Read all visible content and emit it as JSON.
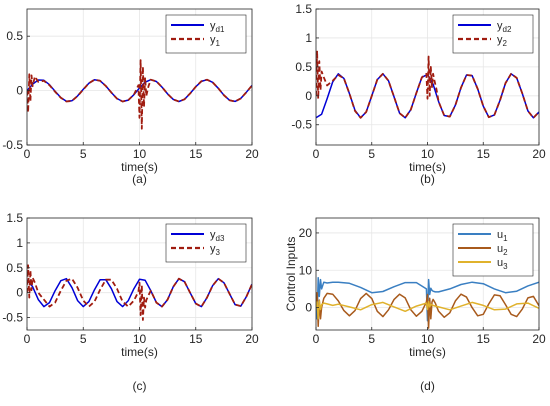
{
  "chart_data": [
    {
      "type": "line",
      "panel_label": "(a)",
      "xlabel": "time(s)",
      "ylabel": "",
      "xlim": [
        0,
        20
      ],
      "ylim": [
        -0.5,
        0.75
      ],
      "xticks": [
        "0",
        "5",
        "10",
        "15",
        "20"
      ],
      "yticks": [
        -0.5,
        0,
        0.5
      ],
      "ytick_labels": [
        "-0.5",
        "0",
        "0.5"
      ],
      "grid": true,
      "legend_position": "top-right",
      "series": [
        {
          "name": "y_d1",
          "label_main": "y",
          "label_sub": "d1",
          "color": "#0000d6",
          "style": "solid",
          "x": [
            0,
            0.5,
            1,
            1.5,
            2,
            2.5,
            3,
            3.5,
            4,
            4.5,
            5,
            5.5,
            6,
            6.5,
            7,
            7.5,
            8,
            8.5,
            9,
            9.5,
            10,
            10.5,
            11,
            11.5,
            12,
            12.5,
            13,
            13.5,
            14,
            14.5,
            15,
            15.5,
            16,
            16.5,
            17,
            17.5,
            18,
            18.5,
            19,
            19.5,
            20
          ],
          "values": [
            0,
            0.059,
            0.097,
            0.095,
            0.054,
            -0.006,
            -0.064,
            -0.098,
            -0.093,
            -0.049,
            0.012,
            0.068,
            0.099,
            0.09,
            0.043,
            -0.018,
            -0.073,
            -0.1,
            -0.087,
            -0.038,
            0.024,
            0.077,
            0.1,
            0.084,
            0.032,
            -0.03,
            -0.081,
            -0.1,
            -0.08,
            -0.027,
            0.036,
            0.085,
            0.1,
            0.076,
            0.021,
            -0.042,
            -0.088,
            -0.099,
            -0.072,
            -0.015,
            0.047
          ]
        },
        {
          "name": "y_1",
          "label_main": "y",
          "label_sub": "1",
          "color": "#a01c10",
          "style": "dashed",
          "x": [
            0,
            0.1,
            0.2,
            0.3,
            0.4,
            0.5,
            0.7,
            1,
            1.5,
            2,
            2.5,
            3,
            3.5,
            4,
            4.5,
            5,
            5.5,
            6,
            6.5,
            7,
            7.5,
            8,
            8.5,
            9,
            9.5,
            9.9,
            10,
            10.1,
            10.2,
            10.3,
            10.4,
            10.5,
            10.6,
            10.8,
            11,
            11.5,
            12,
            12.5,
            13,
            13.5,
            14,
            14.5,
            15,
            15.5,
            16,
            16.5,
            17,
            17.5,
            18,
            18.5,
            19,
            19.5,
            20
          ],
          "values": [
            0,
            -0.2,
            0.15,
            -0.1,
            0.14,
            0.04,
            0.13,
            0.08,
            0.09,
            0.05,
            -0.01,
            -0.065,
            -0.1,
            -0.095,
            -0.05,
            0.01,
            0.068,
            0.1,
            0.09,
            0.042,
            -0.018,
            -0.074,
            -0.1,
            -0.087,
            -0.038,
            0.05,
            -0.25,
            0.28,
            -0.35,
            0.22,
            -0.15,
            0.12,
            -0.05,
            0.04,
            0.1,
            0.085,
            0.032,
            -0.03,
            -0.082,
            -0.1,
            -0.08,
            -0.027,
            0.036,
            0.086,
            0.1,
            0.076,
            0.021,
            -0.042,
            -0.089,
            -0.1,
            -0.072,
            -0.015,
            0.047
          ]
        }
      ]
    },
    {
      "type": "line",
      "panel_label": "(b)",
      "xlabel": "time(s)",
      "ylabel": "",
      "xlim": [
        0,
        20
      ],
      "ylim": [
        -0.85,
        1.5
      ],
      "xticks": [
        "0",
        "5",
        "10",
        "15",
        "20"
      ],
      "yticks": [
        -0.5,
        0,
        0.5,
        1,
        1.5
      ],
      "ytick_labels": [
        "-0.5",
        "0",
        "0.5",
        "1",
        "1.5"
      ],
      "grid": true,
      "legend_position": "top-right",
      "series": [
        {
          "name": "y_d2",
          "label_main": "y",
          "label_sub": "d2",
          "color": "#0000d6",
          "style": "solid",
          "x": [
            0,
            0.5,
            1,
            1.5,
            2,
            2.5,
            3,
            3.5,
            4,
            4.5,
            5,
            5.5,
            6,
            6.5,
            7,
            7.5,
            8,
            8.5,
            9,
            9.5,
            10,
            10.5,
            11,
            11.5,
            12,
            12.5,
            13,
            13.5,
            14,
            14.5,
            15,
            15.5,
            16,
            16.5,
            17,
            17.5,
            18,
            18.5,
            19,
            19.5,
            20
          ],
          "values": [
            -0.38,
            -0.32,
            -0.05,
            0.24,
            0.38,
            0.3,
            0.04,
            -0.25,
            -0.38,
            -0.28,
            0.0,
            0.28,
            0.38,
            0.26,
            -0.02,
            -0.3,
            -0.38,
            -0.24,
            0.05,
            0.32,
            0.37,
            0.2,
            -0.1,
            -0.34,
            -0.36,
            -0.16,
            0.14,
            0.36,
            0.35,
            0.12,
            -0.18,
            -0.37,
            -0.33,
            -0.08,
            0.22,
            0.38,
            0.31,
            0.04,
            -0.26,
            -0.38,
            -0.28
          ]
        },
        {
          "name": "y_2",
          "label_main": "y",
          "label_sub": "2",
          "color": "#a01c10",
          "style": "dashed",
          "x": [
            0,
            0.1,
            0.2,
            0.3,
            0.4,
            0.5,
            0.7,
            1,
            1.5,
            2,
            2.5,
            3,
            3.5,
            4,
            4.5,
            5,
            5.5,
            6,
            6.5,
            7,
            7.5,
            8,
            8.5,
            9,
            9.5,
            9.9,
            10,
            10.1,
            10.2,
            10.3,
            10.4,
            10.5,
            10.6,
            10.8,
            11,
            11.5,
            12,
            12.5,
            13,
            13.5,
            14,
            14.5,
            15,
            15.5,
            16,
            16.5,
            17,
            17.5,
            18,
            18.5,
            19,
            19.5,
            20
          ],
          "values": [
            0,
            0.78,
            -0.05,
            0.6,
            0.1,
            0.42,
            0.32,
            0.18,
            0.26,
            0.36,
            0.3,
            0.04,
            -0.26,
            -0.38,
            -0.28,
            0.0,
            0.28,
            0.38,
            0.26,
            -0.02,
            -0.3,
            -0.38,
            -0.24,
            0.05,
            0.32,
            0.38,
            -0.05,
            0.68,
            0.0,
            0.5,
            0.15,
            0.38,
            0.28,
            0.12,
            -0.1,
            -0.34,
            -0.36,
            -0.16,
            0.14,
            0.36,
            0.35,
            0.12,
            -0.18,
            -0.37,
            -0.33,
            -0.08,
            0.22,
            0.38,
            0.31,
            0.04,
            -0.26,
            -0.38,
            -0.28
          ]
        }
      ]
    },
    {
      "type": "line",
      "panel_label": "(c)",
      "xlabel": "time(s)",
      "ylabel": "",
      "xlim": [
        0,
        20
      ],
      "ylim": [
        -0.75,
        1.5
      ],
      "xticks": [
        "0",
        "5",
        "10",
        "15",
        "20"
      ],
      "yticks": [
        -0.5,
        0,
        0.5,
        1,
        1.5
      ],
      "ytick_labels": [
        "-0.5",
        "0",
        "0.5",
        "1",
        "1.5"
      ],
      "grid": true,
      "legend_position": "top-right",
      "series": [
        {
          "name": "y_d3",
          "label_main": "y",
          "label_sub": "d3",
          "color": "#0000d6",
          "style": "solid",
          "x": [
            0,
            0.5,
            1,
            1.5,
            2,
            2.5,
            3,
            3.5,
            4,
            4.5,
            5,
            5.5,
            6,
            6.5,
            7,
            7.5,
            8,
            8.5,
            9,
            9.5,
            10,
            10.5,
            11,
            11.5,
            12,
            12.5,
            13,
            13.5,
            14,
            14.5,
            15,
            15.5,
            16,
            16.5,
            17,
            17.5,
            18,
            18.5,
            19,
            19.5,
            20
          ],
          "values": [
            0.26,
            0.12,
            -0.14,
            -0.28,
            -0.2,
            0.04,
            0.24,
            0.28,
            0.1,
            -0.16,
            -0.28,
            -0.18,
            0.06,
            0.26,
            0.26,
            0.08,
            -0.18,
            -0.28,
            -0.16,
            0.08,
            0.27,
            0.25,
            0.04,
            -0.2,
            -0.28,
            -0.14,
            0.12,
            0.28,
            0.22,
            0.0,
            -0.22,
            -0.28,
            -0.1,
            0.14,
            0.28,
            0.2,
            -0.02,
            -0.24,
            -0.27,
            -0.08,
            0.17
          ]
        },
        {
          "name": "y_3",
          "label_main": "y",
          "label_sub": "3",
          "color": "#a01c10",
          "style": "dashed",
          "x": [
            0,
            0.1,
            0.2,
            0.3,
            0.4,
            0.5,
            0.7,
            1,
            1.5,
            2,
            2.5,
            3,
            3.5,
            4,
            4.5,
            5,
            5.5,
            6,
            6.5,
            7,
            7.5,
            8,
            8.5,
            9,
            9.5,
            9.9,
            10,
            10.1,
            10.2,
            10.3,
            10.4,
            10.5,
            10.6,
            10.8,
            11,
            11.5,
            12,
            12.5,
            13,
            13.5,
            14,
            14.5,
            15,
            15.5,
            16,
            16.5,
            17,
            17.5,
            18,
            18.5,
            19,
            19.5,
            20
          ],
          "values": [
            0,
            0.55,
            -0.1,
            0.45,
            0.05,
            0.3,
            0.2,
            0.0,
            -0.14,
            -0.28,
            -0.2,
            0.04,
            0.24,
            0.28,
            0.1,
            -0.16,
            -0.28,
            -0.18,
            0.06,
            0.26,
            0.26,
            0.08,
            -0.18,
            -0.28,
            -0.16,
            0.02,
            0.2,
            -0.45,
            0.15,
            -0.55,
            -0.1,
            -0.3,
            -0.15,
            -0.05,
            0.04,
            -0.2,
            -0.28,
            -0.14,
            0.12,
            0.28,
            0.22,
            0.0,
            -0.22,
            -0.28,
            -0.1,
            0.14,
            0.28,
            0.2,
            -0.02,
            -0.24,
            -0.27,
            -0.08,
            0.17
          ]
        }
      ]
    },
    {
      "type": "line",
      "panel_label": "(d)",
      "xlabel": "time(s)",
      "ylabel": "Control Inputs",
      "xlim": [
        0,
        20
      ],
      "ylim": [
        -6,
        24
      ],
      "xticks": [
        "0",
        "5",
        "10",
        "15",
        "20"
      ],
      "yticks": [
        0,
        10,
        20
      ],
      "ytick_labels": [
        "0",
        "10",
        "20"
      ],
      "grid": true,
      "legend_position": "top-right",
      "series": [
        {
          "name": "u_1",
          "label_main": "u",
          "label_sub": "1",
          "color": "#3a7fc2",
          "style": "solid",
          "x": [
            0,
            0.1,
            0.2,
            0.3,
            0.4,
            0.5,
            0.7,
            1,
            1.5,
            2,
            3,
            4,
            5,
            6,
            7,
            8,
            9,
            9.9,
            10,
            10.1,
            10.2,
            10.3,
            10.4,
            10.5,
            10.7,
            11,
            12,
            13,
            14,
            15,
            16,
            17,
            18,
            19,
            20
          ],
          "values": [
            0,
            -3,
            8,
            3,
            7.5,
            5,
            6.8,
            6.6,
            6.8,
            6.8,
            6.5,
            5.4,
            4.0,
            4.3,
            5.6,
            6.7,
            6.7,
            5.0,
            -3.5,
            7.5,
            3.5,
            5.2,
            4.6,
            4.4,
            4.2,
            4.2,
            5.0,
            6.2,
            6.8,
            6.4,
            5.0,
            4.0,
            4.4,
            5.8,
            6.8
          ]
        },
        {
          "name": "u_2",
          "label_main": "u",
          "label_sub": "2",
          "color": "#a85a1c",
          "style": "solid",
          "x": [
            0,
            0.1,
            0.2,
            0.3,
            0.4,
            0.5,
            0.7,
            1,
            1.5,
            2,
            2.5,
            3,
            3.5,
            4,
            4.5,
            5,
            5.5,
            6,
            6.5,
            7,
            7.5,
            8,
            8.5,
            9,
            9.5,
            9.9,
            10,
            10.1,
            10.2,
            10.3,
            10.4,
            10.5,
            10.7,
            11,
            11.5,
            12,
            12.5,
            13,
            13.5,
            14,
            14.5,
            15,
            15.5,
            16,
            16.5,
            17,
            17.5,
            18,
            18.5,
            19,
            19.5,
            20
          ],
          "values": [
            0,
            4,
            -5,
            2,
            -3,
            0,
            2.5,
            3.8,
            3.6,
            1.8,
            -0.8,
            -2.2,
            -0.8,
            2.4,
            3.8,
            2.4,
            -1.0,
            -2.4,
            -0.6,
            2.2,
            3.6,
            2.6,
            -0.6,
            -2.3,
            -1.0,
            1.5,
            3.5,
            -5.5,
            2.5,
            -3.0,
            1.5,
            2.2,
            1.2,
            -1.0,
            -2.6,
            -1.4,
            1.8,
            3.6,
            2.8,
            0.0,
            -2.2,
            -1.8,
            1.0,
            3.4,
            3.2,
            0.8,
            -1.8,
            -2.4,
            -0.4,
            2.6,
            3.0,
            0.5
          ]
        },
        {
          "name": "u_3",
          "label_main": "u",
          "label_sub": "3",
          "color": "#e0b22c",
          "style": "solid",
          "x": [
            0,
            0.1,
            0.2,
            0.3,
            0.4,
            0.5,
            0.7,
            1,
            1.5,
            2,
            3,
            4,
            5,
            6,
            7,
            8,
            9,
            9.9,
            10,
            10.1,
            10.2,
            10.3,
            10.4,
            10.5,
            10.7,
            11,
            12,
            13,
            14,
            15,
            16,
            17,
            18,
            19,
            20
          ],
          "values": [
            0,
            1.5,
            -3,
            1.8,
            -0.5,
            0.8,
            1.2,
            1.0,
            0.6,
            0.9,
            0.2,
            -0.6,
            0.8,
            1.4,
            0.2,
            -1.0,
            0.4,
            1.2,
            -0.5,
            1.6,
            0.2,
            0.9,
            0.7,
            0.6,
            0.4,
            0.2,
            -0.6,
            0.4,
            1.4,
            0.6,
            -0.6,
            -0.4,
            1.0,
            1.2,
            -0.2
          ]
        }
      ]
    }
  ]
}
